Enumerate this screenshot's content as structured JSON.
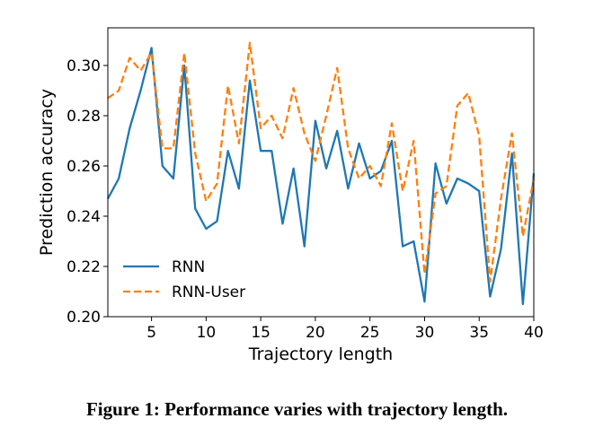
{
  "chart_data": {
    "type": "line",
    "title": "",
    "xlabel": "Trajectory length",
    "ylabel": "Prediction accuracy",
    "xlim": [
      1,
      40
    ],
    "ylim": [
      0.2,
      0.315
    ],
    "xticks": [
      5,
      10,
      15,
      20,
      25,
      30,
      35,
      40
    ],
    "xtick_labels": [
      "5",
      "10",
      "15",
      "20",
      "25",
      "30",
      "35",
      "40"
    ],
    "yticks": [
      0.2,
      0.22,
      0.24,
      0.26,
      0.28,
      0.3
    ],
    "ytick_labels": [
      "0.20",
      "0.22",
      "0.24",
      "0.26",
      "0.28",
      "0.30"
    ],
    "legend_position": "lower-left",
    "grid": false,
    "x": [
      1,
      2,
      3,
      4,
      5,
      6,
      7,
      8,
      9,
      10,
      11,
      12,
      13,
      14,
      15,
      16,
      17,
      18,
      19,
      20,
      21,
      22,
      23,
      24,
      25,
      26,
      27,
      28,
      29,
      30,
      31,
      32,
      33,
      34,
      35,
      36,
      37,
      38,
      39,
      40
    ],
    "series": [
      {
        "name": "RNN",
        "color": "#1f77b4",
        "dash": "solid",
        "values": [
          0.247,
          0.255,
          0.275,
          0.29,
          0.307,
          0.26,
          0.255,
          0.3,
          0.243,
          0.235,
          0.238,
          0.266,
          0.251,
          0.294,
          0.266,
          0.266,
          0.237,
          0.259,
          0.228,
          0.278,
          0.259,
          0.274,
          0.251,
          0.269,
          0.255,
          0.258,
          0.27,
          0.228,
          0.23,
          0.206,
          0.261,
          0.245,
          0.255,
          0.253,
          0.25,
          0.208,
          0.227,
          0.265,
          0.205,
          0.257
        ]
      },
      {
        "name": "RNN-User",
        "color": "#ff7f0e",
        "dash": "dashed",
        "values": [
          0.287,
          0.29,
          0.303,
          0.298,
          0.305,
          0.267,
          0.267,
          0.305,
          0.265,
          0.246,
          0.253,
          0.292,
          0.269,
          0.309,
          0.275,
          0.28,
          0.271,
          0.291,
          0.273,
          0.262,
          0.28,
          0.299,
          0.267,
          0.255,
          0.26,
          0.252,
          0.277,
          0.25,
          0.27,
          0.217,
          0.249,
          0.252,
          0.284,
          0.289,
          0.272,
          0.214,
          0.247,
          0.273,
          0.232,
          0.255
        ]
      }
    ]
  },
  "caption": "Figure 1: Performance varies with trajectory length."
}
